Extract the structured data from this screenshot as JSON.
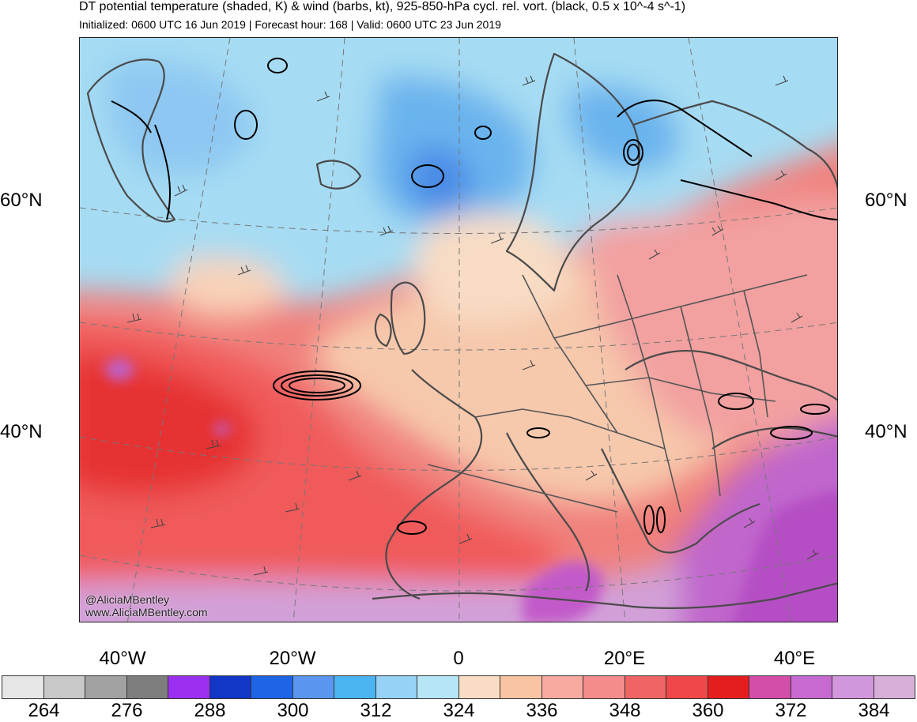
{
  "header": {
    "title": "DT potential temperature (shaded, K) & wind (barbs, kt), 925-850-hPa cycl. rel. vort. (black, 0.5 x 10^-4 s^-1)",
    "subtitle": "Initialized: 0600 UTC 16 Jun 2019 | Forecast hour: 168 | Valid: 0600 UTC 23 Jun 2019"
  },
  "map": {
    "lat_labels": [
      "60°N",
      "40°N"
    ],
    "lon_labels": [
      "40°W",
      "20°W",
      "0",
      "20°E",
      "40°E"
    ],
    "credit_handle": "@AliciaMBentley",
    "credit_url": "www.AliciaMBentley.com"
  },
  "colorbar": {
    "colors": [
      "#e6e6e6",
      "#c8c8c8",
      "#a2a2a2",
      "#7e7e7e",
      "#9b30f0",
      "#1236c8",
      "#1e64e6",
      "#5a96f0",
      "#4ab4f0",
      "#96d2f5",
      "#b6e6f5",
      "#f8dcc4",
      "#f8c4a4",
      "#f8aaa0",
      "#f48c8c",
      "#f06464",
      "#f04848",
      "#e41e1e",
      "#d24ea8",
      "#c66ad2",
      "#d296dc",
      "#d6b0d8"
    ],
    "tick_labels": [
      "264",
      "276",
      "288",
      "300",
      "312",
      "324",
      "336",
      "348",
      "360",
      "372",
      "384"
    ]
  }
}
